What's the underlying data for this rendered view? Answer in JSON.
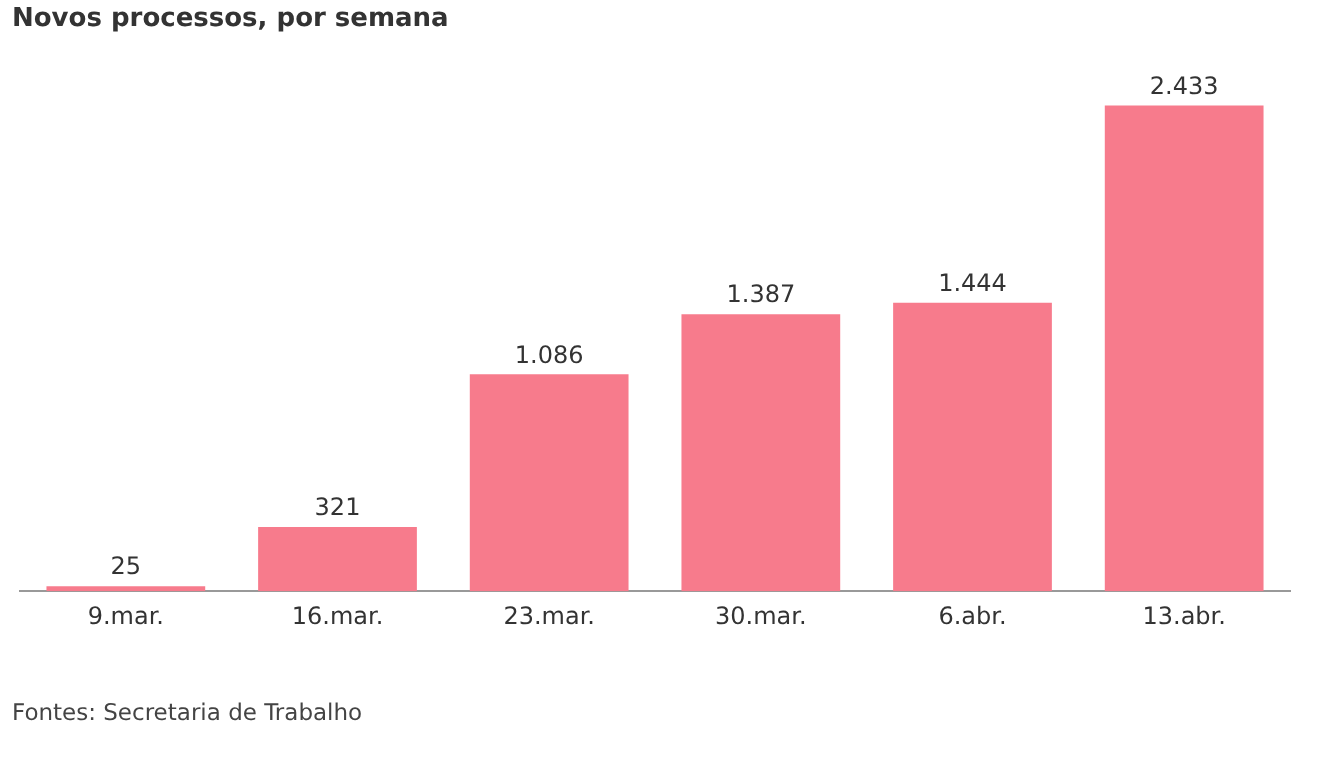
{
  "chart_data": {
    "type": "bar",
    "title": "Novos processos, por semana",
    "categories": [
      "9.mar.",
      "16.mar.",
      "23.mar.",
      "30.mar.",
      "6.abr.",
      "13.abr."
    ],
    "values": [
      25,
      321,
      1086,
      1387,
      1444,
      2433
    ],
    "value_labels": [
      "25",
      "321",
      "1.086",
      "1.387",
      "1.444",
      "2.433"
    ],
    "color": "#f77b8c",
    "grid": false,
    "legend": false,
    "annotations": [
      "Fontes: Secretaria de Trabalho"
    ]
  }
}
